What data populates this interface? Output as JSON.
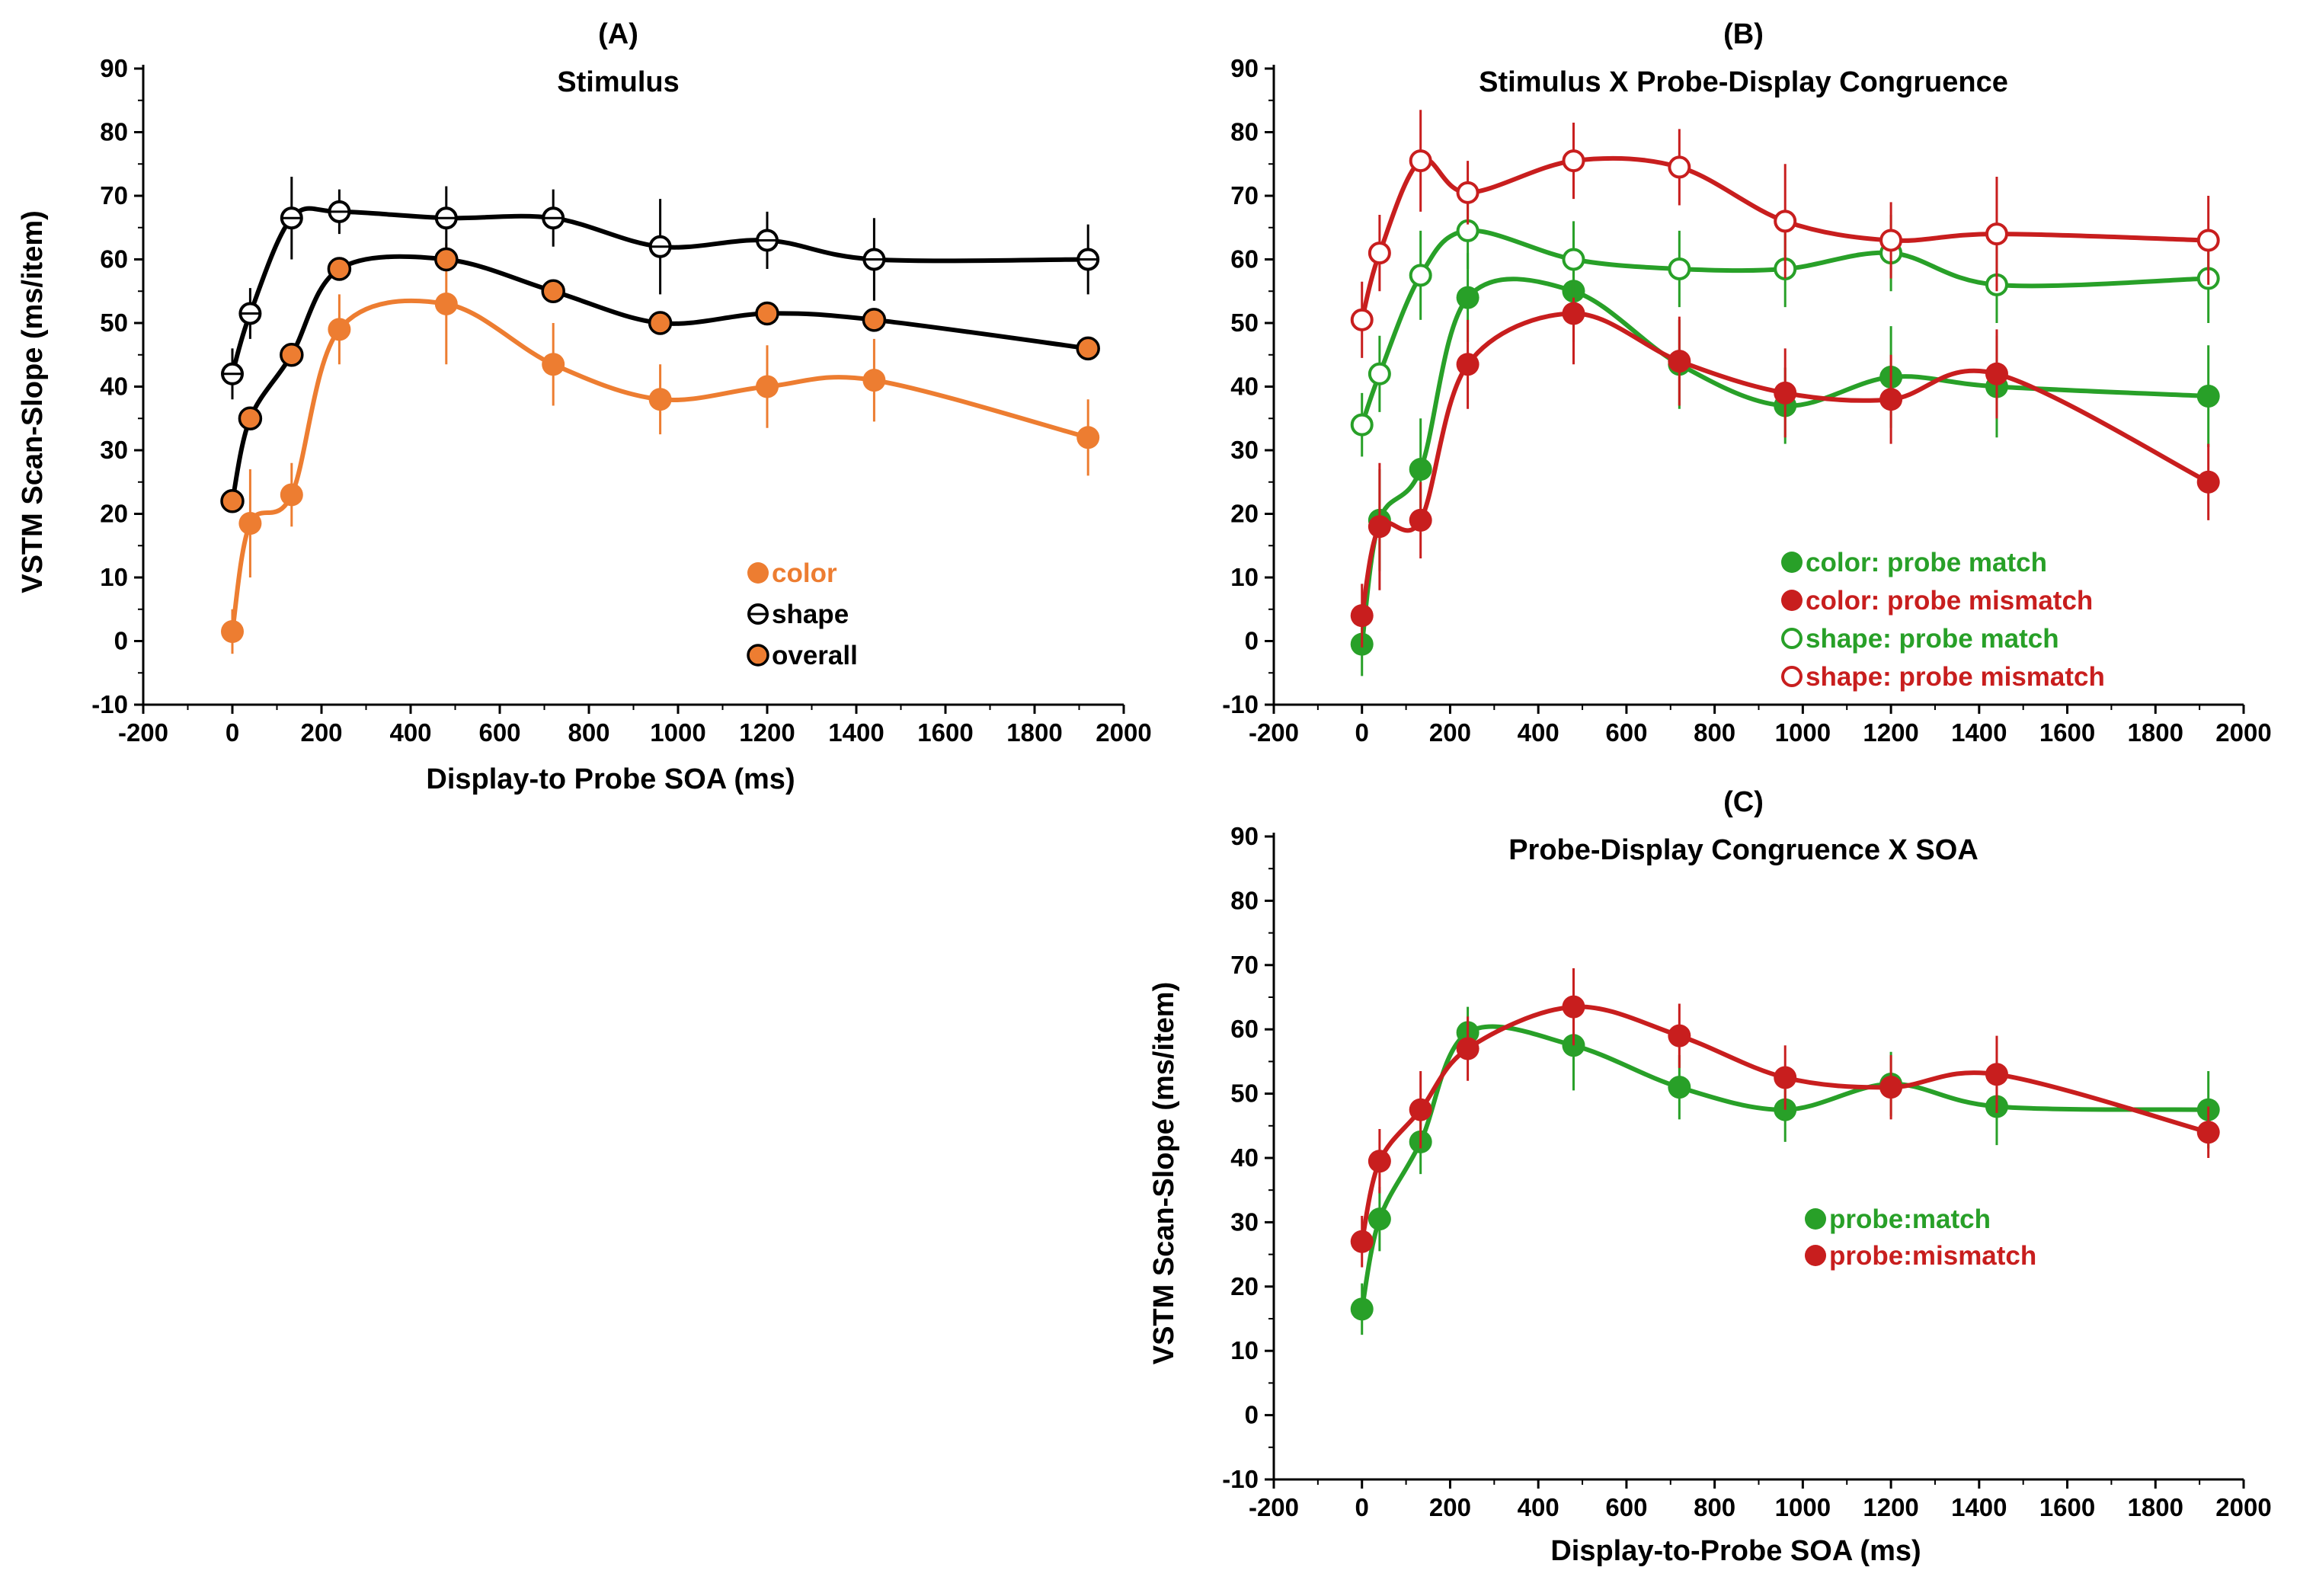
{
  "colors": {
    "orange": "#ED7D31",
    "black": "#000000",
    "green": "#28A028",
    "red": "#C81E1E"
  },
  "chart_data": [
    {
      "type": "line",
      "panel_label": "(A)",
      "title": "Stimulus",
      "xlabel": "Display-to Probe SOA (ms)",
      "ylabel": "VSTM Scan-Slope (ms/item)",
      "xlim": [
        -200,
        2000
      ],
      "ylim": [
        -10,
        90
      ],
      "xticks": [
        -200,
        0,
        200,
        400,
        600,
        800,
        1000,
        1200,
        1400,
        1600,
        1800,
        2000
      ],
      "yticks": [
        -10,
        0,
        10,
        20,
        30,
        40,
        50,
        60,
        70,
        80,
        90
      ],
      "x": [
        0,
        40,
        133,
        240,
        480,
        720,
        960,
        1200,
        1440,
        1920
      ],
      "legend_position": "center-right",
      "series": [
        {
          "name": "color",
          "color": "orange",
          "marker": "filled",
          "values": [
            1.5,
            18.5,
            23,
            49,
            53,
            43.5,
            38,
            40,
            41,
            32
          ],
          "errors": [
            3.5,
            8.5,
            5,
            5.5,
            9.5,
            6.5,
            5.5,
            6.5,
            6.5,
            6
          ]
        },
        {
          "name": "shape",
          "color": "black",
          "marker": "hollow-bar",
          "values": [
            42,
            51.5,
            66.5,
            67.5,
            66.5,
            66.5,
            62,
            63,
            60,
            60
          ],
          "errors": [
            4,
            4,
            6.5,
            3.5,
            5,
            4.5,
            7.5,
            4.5,
            6.5,
            5.5
          ]
        },
        {
          "name": "overall",
          "color": "black",
          "fill": "orange",
          "marker": "filled-outlined",
          "values": [
            22,
            35,
            45,
            58.5,
            60,
            55,
            50,
            51.5,
            50.5,
            46
          ],
          "errors": [
            0,
            0,
            0,
            0,
            0,
            0,
            0,
            0,
            0,
            0
          ]
        }
      ]
    },
    {
      "type": "line",
      "panel_label": "(B)",
      "title": "Stimulus X Probe-Display Congruence",
      "xlabel": "",
      "ylabel": "",
      "xlim": [
        -200,
        2000
      ],
      "ylim": [
        -10,
        90
      ],
      "xticks": [
        -200,
        0,
        200,
        400,
        600,
        800,
        1000,
        1200,
        1400,
        1600,
        1800,
        2000
      ],
      "yticks": [
        -10,
        0,
        10,
        20,
        30,
        40,
        50,
        60,
        70,
        80,
        90
      ],
      "x": [
        0,
        40,
        133,
        240,
        480,
        720,
        960,
        1200,
        1440,
        1920
      ],
      "legend_position": "bottom-right",
      "series": [
        {
          "name": "color: probe match",
          "color": "green",
          "marker": "filled",
          "values": [
            -0.5,
            19,
            27,
            54,
            55,
            43.5,
            37,
            41.5,
            40,
            38.5
          ],
          "errors": [
            5,
            8,
            8,
            7,
            8,
            7,
            6,
            8,
            8,
            8
          ]
        },
        {
          "name": "color: probe mismatch",
          "color": "red",
          "marker": "filled",
          "values": [
            4,
            18,
            19,
            43.5,
            51.5,
            44,
            39,
            38,
            42,
            25
          ],
          "errors": [
            5,
            10,
            6,
            7,
            8,
            7,
            7,
            7,
            7,
            6
          ]
        },
        {
          "name": "shape: probe match",
          "color": "green",
          "marker": "hollow",
          "values": [
            34,
            42,
            57.5,
            64.5,
            60,
            58.5,
            58.5,
            61,
            56,
            57
          ],
          "errors": [
            5,
            6,
            7,
            6,
            6,
            6,
            6,
            6,
            6,
            7
          ]
        },
        {
          "name": "shape: probe mismatch",
          "color": "red",
          "marker": "hollow",
          "values": [
            50.5,
            61,
            75.5,
            70.5,
            75.5,
            74.5,
            66,
            63,
            64,
            63
          ],
          "errors": [
            6,
            6,
            8,
            5,
            6,
            6,
            9,
            6,
            9,
            7
          ]
        }
      ]
    },
    {
      "type": "line",
      "panel_label": "(C)",
      "title": "Probe-Display Congruence X SOA",
      "xlabel": "Display-to-Probe SOA (ms)",
      "ylabel": "VSTM Scan-Slope (ms/item)",
      "xlim": [
        -200,
        2000
      ],
      "ylim": [
        -10,
        90
      ],
      "xticks": [
        -200,
        0,
        200,
        400,
        600,
        800,
        1000,
        1200,
        1400,
        1600,
        1800,
        2000
      ],
      "yticks": [
        -10,
        0,
        10,
        20,
        30,
        40,
        50,
        60,
        70,
        80,
        90
      ],
      "x": [
        0,
        40,
        133,
        240,
        480,
        720,
        960,
        1200,
        1440,
        1920
      ],
      "legend_position": "center-right",
      "series": [
        {
          "name": "probe:match",
          "color": "green",
          "marker": "filled",
          "values": [
            16.5,
            30.5,
            42.5,
            59.5,
            57.5,
            51,
            47.5,
            51.5,
            48,
            47.5
          ],
          "errors": [
            4,
            5,
            5,
            4,
            7,
            5,
            5,
            5,
            6,
            6
          ]
        },
        {
          "name": "probe:mismatch",
          "color": "red",
          "marker": "filled",
          "values": [
            27,
            39.5,
            47.5,
            57,
            63.5,
            59,
            52.5,
            51,
            53,
            44
          ],
          "errors": [
            4,
            5,
            6,
            5,
            6,
            5,
            5,
            5,
            6,
            4
          ]
        }
      ]
    }
  ]
}
